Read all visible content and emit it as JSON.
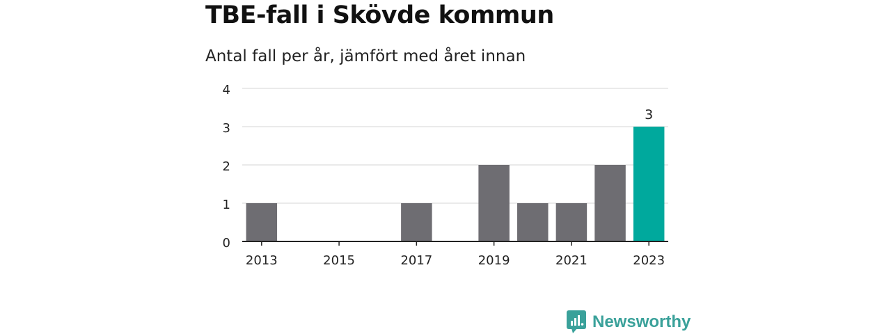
{
  "header": {
    "title": "TBE-fall i Skövde kommun",
    "subtitle": "Antal fall per år, jämfört med året innan"
  },
  "brand": {
    "name": "Newsworthy",
    "icon": "bar-chart-speech-bubble-icon",
    "color": "#3aa19a"
  },
  "colors": {
    "bar": "#6e6d72",
    "highlight": "#00a99d",
    "grid": "#dddddd",
    "axis": "#222222",
    "text": "#222222"
  },
  "chart_data": {
    "type": "bar",
    "categories": [
      "2013",
      "2014",
      "2015",
      "2016",
      "2017",
      "2018",
      "2019",
      "2020",
      "2021",
      "2022",
      "2023"
    ],
    "values": [
      1,
      0,
      0,
      0,
      1,
      0,
      2,
      1,
      1,
      2,
      3
    ],
    "x_tick_labels": [
      "2013",
      "2015",
      "2017",
      "2019",
      "2021",
      "2023"
    ],
    "y_ticks": [
      0,
      1,
      2,
      3,
      4
    ],
    "ylim": [
      0,
      4
    ],
    "highlight_category": "2023",
    "data_labels": [
      {
        "category": "2023",
        "label": "3"
      }
    ],
    "grid": true,
    "title": "TBE-fall i Skövde kommun",
    "subtitle": "Antal fall per år, jämfört med året innan"
  }
}
